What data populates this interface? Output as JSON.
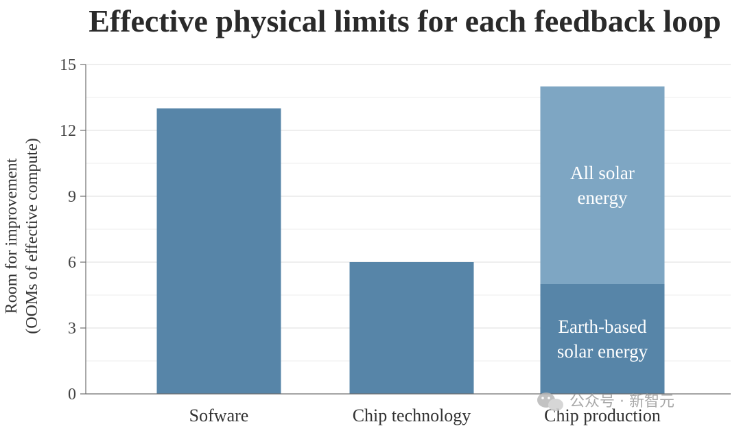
{
  "chart_data": {
    "type": "bar",
    "title": "Effective physical limits for each feedback loop",
    "ylabel_lines": [
      "Room for improvement",
      "(OOMs of effective compute)"
    ],
    "xlabel": "",
    "ylim": [
      0,
      15
    ],
    "yticks": [
      0,
      3,
      6,
      9,
      12,
      15
    ],
    "grid": true,
    "categories": [
      "Sofware",
      "Chip technology",
      "Chip production"
    ],
    "bars": [
      {
        "category": "Sofware",
        "segments": [
          {
            "label_lines": [],
            "bottom": 0,
            "top": 13,
            "color": "#5785a8"
          }
        ]
      },
      {
        "category": "Chip technology",
        "segments": [
          {
            "label_lines": [],
            "bottom": 0,
            "top": 6,
            "color": "#5785a8"
          }
        ]
      },
      {
        "category": "Chip production",
        "segments": [
          {
            "label_lines": [
              "Earth-based",
              "solar energy"
            ],
            "bottom": 0,
            "top": 5,
            "color": "#5785a8"
          },
          {
            "label_lines": [
              "All solar",
              "energy"
            ],
            "bottom": 5,
            "top": 14,
            "color": "#7ea6c3"
          }
        ]
      }
    ]
  },
  "watermark": {
    "text": "公众号 · 新智元",
    "icon": "wechat-icon"
  }
}
